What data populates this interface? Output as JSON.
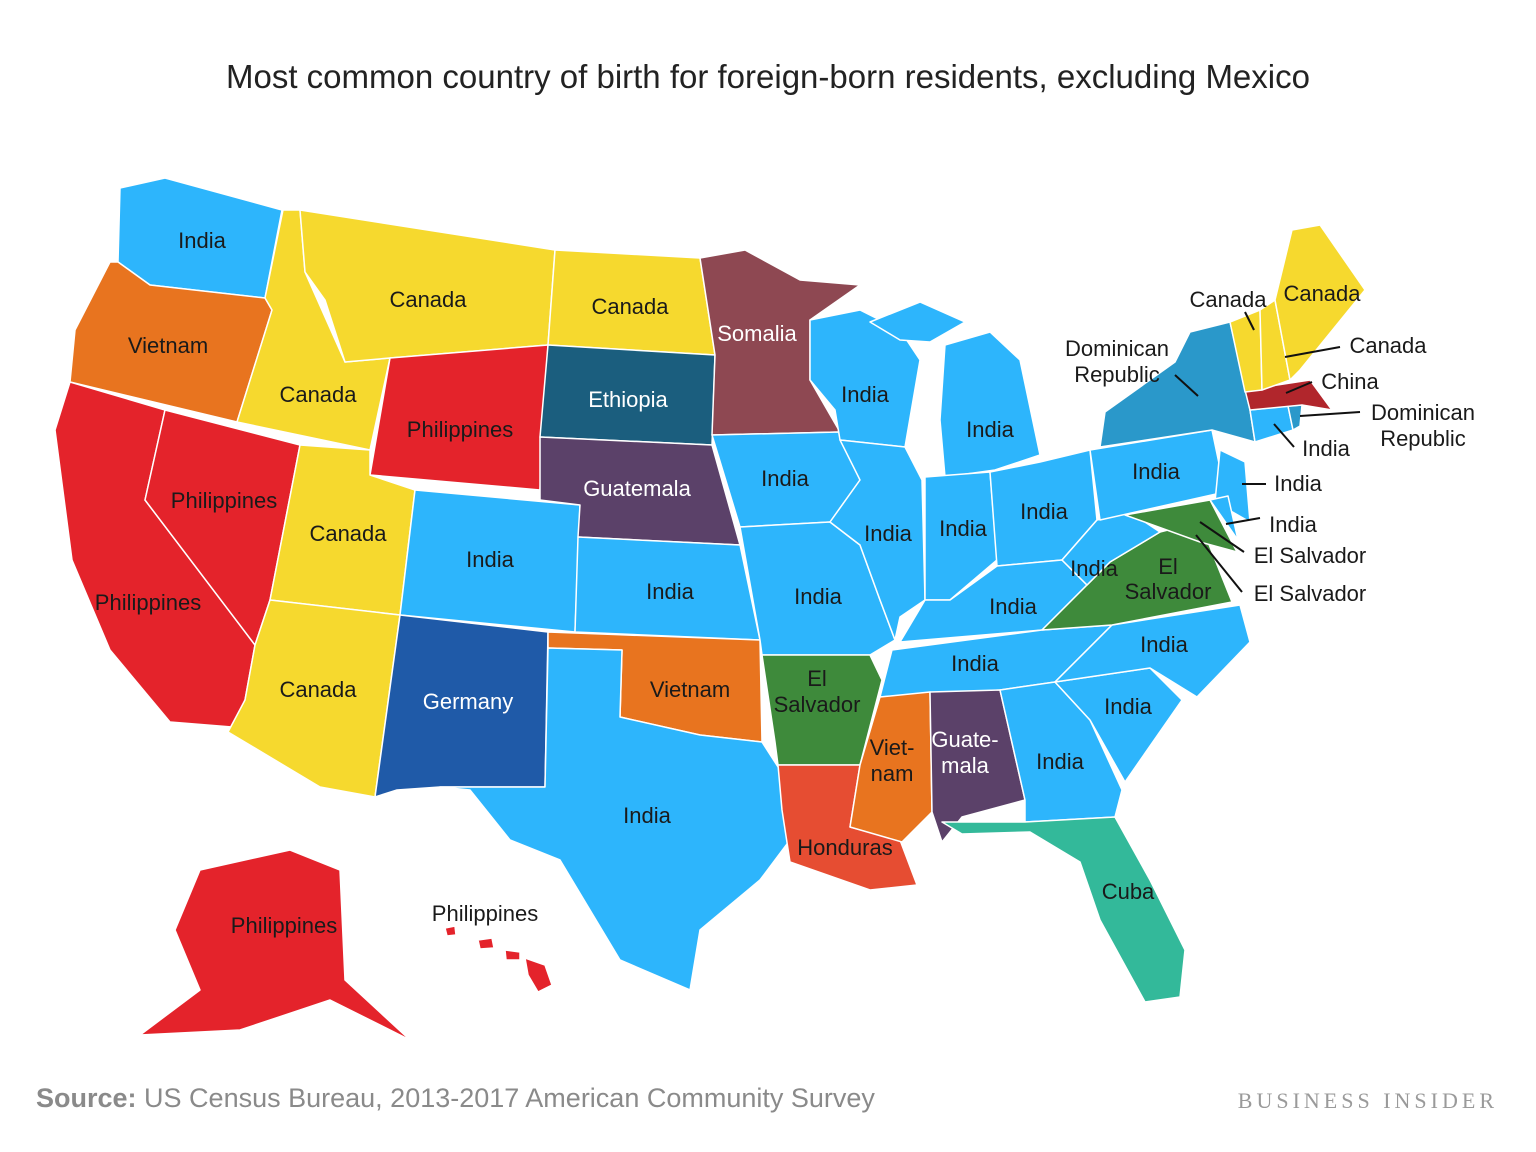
{
  "title": "Most common country of birth for foreign-born residents, excluding Mexico",
  "footer": {
    "source_label": "Source:",
    "source_text": "US Census Bureau, 2013-2017 American Community Survey",
    "brand": "BUSINESS INSIDER"
  },
  "colors": {
    "India": "#2db5fc",
    "Canada": "#f6d92e",
    "Philippines": "#e4232b",
    "Vietnam": "#e8741f",
    "Somalia": "#8e4852",
    "Ethiopia": "#1b5e7e",
    "Guatemala": "#5b4169",
    "Germany": "#1f5aa8",
    "El Salvador": "#3e8a3b",
    "Honduras": "#e64d32",
    "Cuba": "#33b99a",
    "Dominican Republic": "#2a98ca",
    "China": "#b1262c"
  },
  "regions": {
    "WA": "India",
    "OR": "Vietnam",
    "CA": "Philippines",
    "NV": "Philippines",
    "ID": "Canada",
    "MT": "Canada",
    "WY": "Philippines",
    "UT": "Canada",
    "AZ": "Canada",
    "CO": "India",
    "NM": "Germany",
    "ND": "Canada",
    "SD": "Ethiopia",
    "NE": "Guatemala",
    "KS": "India",
    "OK": "Vietnam",
    "TX": "India",
    "MN": "Somalia",
    "IA": "India",
    "MO": "India",
    "AR": "El Salvador",
    "LA": "Honduras",
    "WI": "India",
    "IL": "India",
    "MI": "India",
    "IN": "India",
    "OH": "India",
    "KY": "India",
    "TN": "India",
    "MS": "Vietnam",
    "AL": "Guatemala",
    "GA": "India",
    "FL": "Cuba",
    "SC": "India",
    "NC": "India",
    "VA": "El Salvador",
    "WV": "India",
    "PA": "India",
    "NY": "Dominican Republic",
    "NJ": "India",
    "MD": "El Salvador",
    "DE": "India",
    "CT": "India",
    "RI": "Dominican Republic",
    "MA": "China",
    "VT": "Canada",
    "NH": "Canada",
    "ME": "Canada",
    "AK": "Philippines",
    "HI": "Philippines"
  },
  "labels": {
    "india": "India",
    "canada": "Canada",
    "philippines": "Philippines",
    "vietnam": "Vietnam",
    "viet1": "Viet-",
    "viet2": "nam",
    "somalia": "Somalia",
    "ethiopia": "Ethiopia",
    "guatemala": "Guatemala",
    "guate1": "Guate-",
    "guate2": "mala",
    "germany": "Germany",
    "el": "El",
    "salvador": "Salvador",
    "el_salvador": "El Salvador",
    "honduras": "Honduras",
    "cuba": "Cuba",
    "dominican": "Dominican",
    "republic": "Republic",
    "china": "China"
  }
}
